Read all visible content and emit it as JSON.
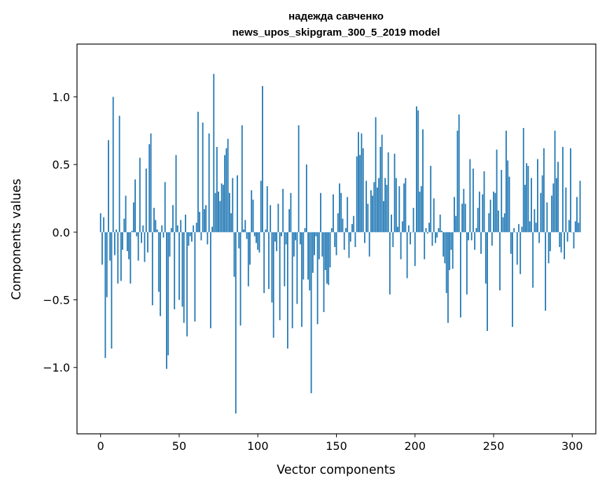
{
  "chart_data": {
    "type": "bar",
    "title": [
      "надежда савченко",
      "news_upos_skipgram_300_5_2019 model"
    ],
    "xlabel": "Vector components",
    "ylabel": "Components values",
    "xlim": [
      -15,
      315
    ],
    "ylim": [
      -1.49,
      1.39
    ],
    "xticks": [
      0,
      50,
      100,
      150,
      200,
      250,
      300
    ],
    "xtick_labels": [
      "0",
      "50",
      "100",
      "150",
      "200",
      "250",
      "300"
    ],
    "yticks": [
      -1.0,
      -0.5,
      0.0,
      0.5,
      1.0
    ],
    "ytick_labels": [
      "−1.0",
      "−0.5",
      "0.0",
      "0.5",
      "1.0"
    ],
    "bar_color": "#1f77b4",
    "grid": false,
    "series": [
      {
        "name": "values",
        "values": [
          0.14,
          -0.24,
          0.11,
          -0.93,
          -0.48,
          0.68,
          -0.21,
          -0.86,
          1.0,
          -0.17,
          0.02,
          -0.38,
          0.86,
          -0.36,
          -0.13,
          0.1,
          0.27,
          -0.14,
          -0.2,
          -0.38,
          0.01,
          0.22,
          0.39,
          -0.03,
          -0.21,
          0.55,
          -0.08,
          0.05,
          -0.22,
          0.47,
          -0.15,
          0.65,
          0.73,
          -0.54,
          0.18,
          0.09,
          0.02,
          -0.44,
          -0.62,
          0.05,
          -0.04,
          0.37,
          -1.01,
          -0.91,
          -0.18,
          0.03,
          0.2,
          -0.57,
          0.57,
          0.05,
          -0.5,
          0.09,
          -0.55,
          -0.67,
          0.13,
          -0.77,
          -0.1,
          -0.03,
          -0.07,
          0.05,
          -0.66,
          0.07,
          0.89,
          0.15,
          -0.06,
          0.81,
          0.17,
          0.2,
          -0.09,
          0.73,
          -0.71,
          0.04,
          1.17,
          0.29,
          0.63,
          0.3,
          0.23,
          0.36,
          0.35,
          0.57,
          0.62,
          0.69,
          0.29,
          0.14,
          0.4,
          -0.33,
          -1.34,
          0.42,
          -0.12,
          -0.69,
          0.79,
          0.02,
          0.09,
          -0.05,
          -0.4,
          -0.24,
          0.31,
          0.24,
          -0.03,
          -0.08,
          -0.13,
          -0.15,
          0.38,
          1.08,
          -0.45,
          0.02,
          0.34,
          -0.42,
          0.2,
          -0.52,
          -0.78,
          -0.07,
          -0.14,
          0.21,
          -0.65,
          -0.03,
          0.32,
          -0.4,
          -0.09,
          -0.86,
          0.17,
          0.29,
          -0.71,
          -0.18,
          -0.06,
          -0.53,
          0.79,
          -0.09,
          -0.7,
          -0.35,
          0.03,
          0.5,
          -0.35,
          -0.43,
          -1.19,
          -0.3,
          -0.17,
          -0.03,
          -0.68,
          -0.2,
          0.29,
          -0.18,
          -0.59,
          -0.28,
          -0.38,
          -0.39,
          -0.26,
          0.03,
          0.28,
          -0.11,
          -0.17,
          0.14,
          0.36,
          0.29,
          0.1,
          -0.13,
          0.03,
          0.26,
          -0.19,
          -0.07,
          0.06,
          0.12,
          -0.11,
          0.56,
          0.74,
          0.57,
          0.73,
          0.62,
          -0.08,
          0.38,
          0.21,
          -0.18,
          0.31,
          0.27,
          0.37,
          0.85,
          0.33,
          0.4,
          0.63,
          0.72,
          0.23,
          0.4,
          0.35,
          0.59,
          -0.46,
          0.13,
          -0.11,
          0.58,
          0.4,
          0.04,
          0.34,
          -0.2,
          0.08,
          0.36,
          0.4,
          -0.34,
          0.05,
          -0.09,
          0.0,
          0.18,
          -0.25,
          0.93,
          0.9,
          0.3,
          0.34,
          0.76,
          -0.2,
          0.03,
          -0.01,
          0.07,
          0.49,
          -0.1,
          0.25,
          -0.08,
          -0.04,
          0.03,
          0.13,
          0.01,
          -0.18,
          -0.23,
          -0.45,
          -0.67,
          -0.28,
          -0.13,
          -0.27,
          0.26,
          0.12,
          0.75,
          0.87,
          -0.63,
          0.21,
          0.32,
          0.21,
          -0.46,
          -0.06,
          0.54,
          -0.06,
          0.47,
          -0.13,
          0.03,
          0.18,
          0.3,
          -0.16,
          0.28,
          0.45,
          -0.38,
          -0.73,
          0.14,
          0.24,
          -0.1,
          0.3,
          0.29,
          0.61,
          0.16,
          -0.43,
          0.46,
          0.11,
          0.14,
          0.75,
          0.53,
          0.41,
          -0.16,
          -0.7,
          0.03,
          0.0,
          -0.24,
          0.06,
          -0.31,
          0.04,
          0.77,
          0.35,
          0.51,
          0.49,
          0.08,
          0.4,
          -0.41,
          0.17,
          0.07,
          0.54,
          -0.08,
          0.29,
          0.42,
          0.62,
          -0.58,
          0.22,
          -0.23,
          -0.14,
          0.27,
          0.36,
          0.75,
          0.4,
          0.52,
          -0.11,
          -0.15,
          0.63,
          -0.2,
          0.33,
          -0.07,
          0.09,
          0.62,
          0.0,
          -0.12,
          0.08,
          0.26,
          0.07,
          0.38
        ]
      }
    ]
  }
}
